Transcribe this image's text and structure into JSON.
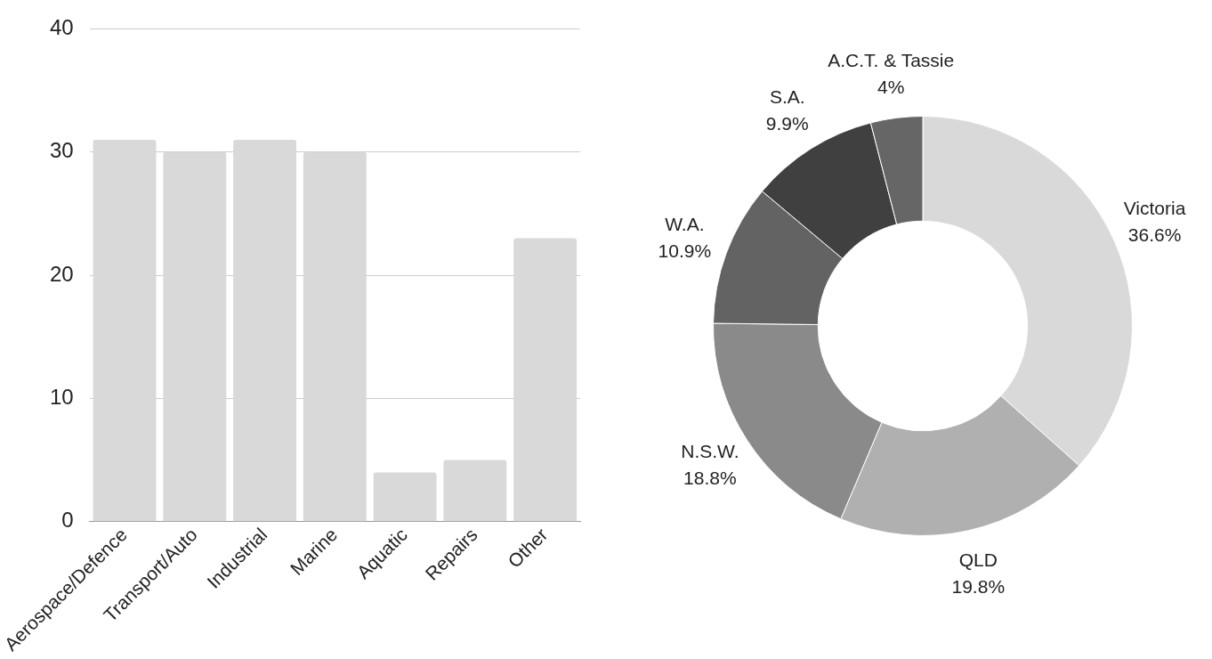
{
  "chart_data": [
    {
      "type": "bar",
      "categories": [
        "Aerospace/Defence",
        "Transport/Auto",
        "Industrial",
        "Marine",
        "Aquatic",
        "Repairs",
        "Other"
      ],
      "values": [
        31,
        30,
        31,
        30,
        4,
        5,
        23
      ],
      "color": "#d9d9d9",
      "ylim": [
        0,
        40
      ],
      "yticks": [
        0,
        10,
        20,
        30,
        40
      ],
      "grid": "y",
      "legend": false
    },
    {
      "type": "donut",
      "categories": [
        "Victoria",
        "QLD",
        "N.S.W.",
        "W.A.",
        "S.A.",
        "A.C.T. & Tassie"
      ],
      "values": [
        36.6,
        19.8,
        18.8,
        10.9,
        9.9,
        4
      ],
      "value_labels": [
        "36.6%",
        "19.8%",
        "18.8%",
        "10.9%",
        "9.9%",
        "4%"
      ],
      "colors": [
        "#d9d9d9",
        "#b0b0b0",
        "#8a8a8a",
        "#636363",
        "#404040",
        "#666666"
      ],
      "legend": false
    }
  ]
}
